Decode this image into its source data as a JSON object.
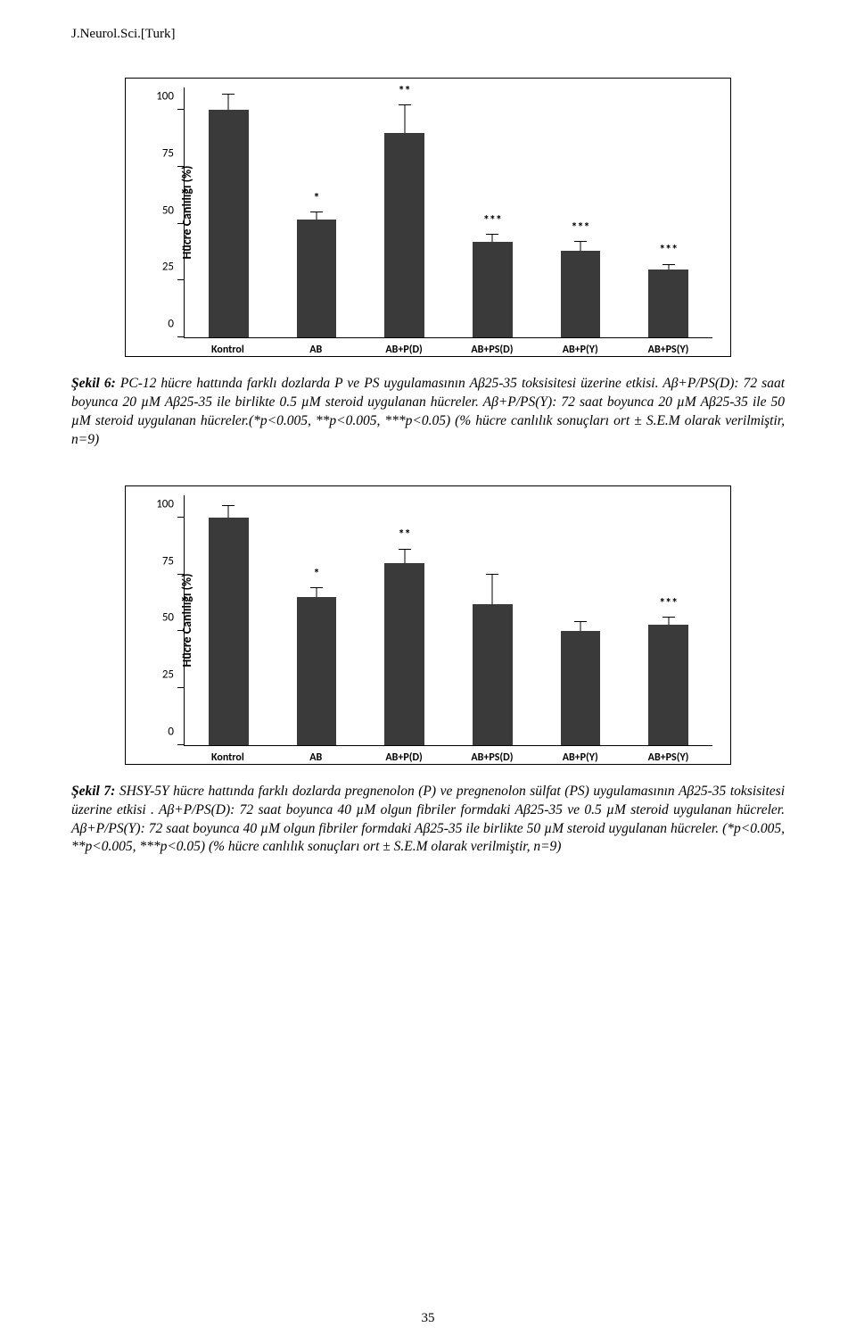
{
  "header": {
    "running": "J.Neurol.Sci.[Turk]"
  },
  "page_number": "35",
  "chart6": {
    "type": "bar",
    "ylabel": "Hücre Canlılığı (%)",
    "ylim": [
      0,
      110
    ],
    "yticks": [
      0,
      25,
      50,
      75,
      100
    ],
    "bar_color": "#3a3a3a",
    "border_color": "#000000",
    "background_color": "#ffffff",
    "bar_width_pct": 7.5,
    "categories": [
      "Kontrol",
      "AB",
      "AB+P(D)",
      "AB+PS(D)",
      "AB+P(Y)",
      "AB+PS(Y)"
    ],
    "values": [
      100,
      52,
      90,
      42,
      38,
      30
    ],
    "errors": [
      7,
      3,
      12,
      3,
      4,
      2
    ],
    "sig": [
      "",
      "*",
      "**",
      "***",
      "***",
      "***"
    ]
  },
  "caption6": {
    "label": "Şekil 6:",
    "text": " PC-12 hücre hattında farklı dozlarda P ve PS uygulamasının Aβ25-35 toksisitesi üzerine etkisi. Aβ+P/PS(D): 72 saat boyunca 20 µM Aβ25-35 ile birlikte 0.5 µM steroid uygulanan hücreler. Aβ+P/PS(Y): 72 saat boyunca 20 µM Aβ25-35 ile 50 µM steroid uygulanan hücreler.(*p<0.005, **p<0.005, ***p<0.05) (% hücre canlılık sonuçları ort ± S.E.M olarak verilmiştir, n=9)"
  },
  "chart7": {
    "type": "bar",
    "ylabel": "Hücre Canlılığı (%)",
    "ylim": [
      0,
      110
    ],
    "yticks": [
      0,
      25,
      50,
      75,
      100
    ],
    "bar_color": "#3a3a3a",
    "border_color": "#000000",
    "background_color": "#ffffff",
    "bar_width_pct": 7.5,
    "categories": [
      "Kontrol",
      "AB",
      "AB+P(D)",
      "AB+PS(D)",
      "AB+P(Y)",
      "AB+PS(Y)"
    ],
    "values": [
      100,
      65,
      80,
      62,
      50,
      53
    ],
    "errors": [
      5,
      4,
      6,
      13,
      4,
      3
    ],
    "sig": [
      "",
      "*",
      "**",
      "",
      "",
      "***"
    ]
  },
  "caption7": {
    "label": "Şekil 7:",
    "text": " SHSY-5Y hücre hattında farklı dozlarda pregnenolon (P) ve pregnenolon sülfat (PS) uygulamasının Aβ25-35 toksisitesi üzerine etkisi . Aβ+P/PS(D): 72 saat boyunca 40 µM olgun fibriler formdaki Aβ25-35 ve 0.5 µM steroid uygulanan hücreler. Aβ+P/PS(Y): 72 saat boyunca 40 µM olgun fibriler formdaki Aβ25-35 ile birlikte 50 µM steroid uygulanan hücreler. (*p<0.005, **p<0.005, ***p<0.05) (% hücre canlılık sonuçları ort ± S.E.M olarak verilmiştir, n=9)"
  }
}
